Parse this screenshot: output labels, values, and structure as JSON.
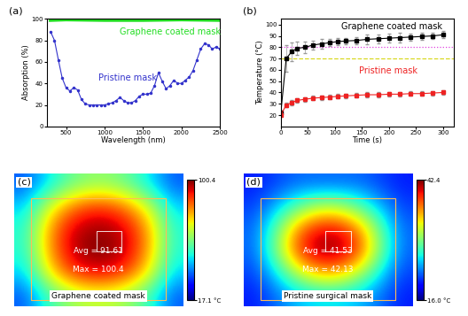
{
  "chart_data": [
    {
      "type": "line",
      "panel": "(a)",
      "x_label": "Wavelength (nm)",
      "y_label": "Absorption (%)",
      "xlim": [
        250,
        2500
      ],
      "xticks": [
        500,
        1000,
        1500,
        2000,
        2500
      ],
      "ylim": [
        0,
        100
      ],
      "yticks": [
        0,
        20,
        40,
        60,
        80,
        100
      ],
      "series": [
        {
          "name": "Graphene coated mask",
          "color": "#22dd22",
          "marker": "none",
          "line_style": "solid",
          "x": [
            300,
            500,
            1000,
            1500,
            2000,
            2500
          ],
          "values": [
            99,
            99.5,
            99,
            99,
            99.5,
            99
          ]
        },
        {
          "name": "Pristine mask",
          "color": "#3333cc",
          "marker": "o",
          "line_style": "solid",
          "x": [
            300,
            350,
            400,
            450,
            500,
            550,
            600,
            650,
            700,
            750,
            800,
            850,
            900,
            950,
            1000,
            1050,
            1100,
            1150,
            1200,
            1250,
            1300,
            1350,
            1400,
            1450,
            1500,
            1550,
            1600,
            1650,
            1700,
            1750,
            1800,
            1850,
            1900,
            1950,
            2000,
            2050,
            2100,
            2150,
            2200,
            2250,
            2300,
            2350,
            2400,
            2450,
            2500
          ],
          "values": [
            88,
            80,
            62,
            45,
            36,
            33,
            36,
            34,
            25,
            21,
            20,
            20,
            20,
            20,
            20,
            21,
            22,
            24,
            27,
            24,
            22,
            22,
            24,
            28,
            30,
            30,
            31,
            38,
            50,
            42,
            35,
            38,
            43,
            40,
            40,
            43,
            46,
            52,
            62,
            72,
            77,
            76,
            72,
            74,
            72
          ]
        }
      ]
    },
    {
      "type": "line",
      "panel": "(b)",
      "x_label": "Time (s)",
      "y_label": "Temperature (°C)",
      "xlim": [
        0,
        320
      ],
      "xticks": [
        0,
        50,
        100,
        150,
        200,
        250,
        300
      ],
      "ylim": [
        10,
        105
      ],
      "yticks": [
        20,
        30,
        40,
        50,
        60,
        70,
        80,
        90,
        100
      ],
      "hlines": [
        {
          "value": 80,
          "color": "#e040e0",
          "line_style": "dotted"
        },
        {
          "value": 70,
          "color": "#d8d820",
          "line_style": "dashed"
        }
      ],
      "series": [
        {
          "name": "Graphene coated mask",
          "color": "#000000",
          "marker": "s",
          "line_style": "solid",
          "x": [
            0,
            10,
            20,
            30,
            45,
            60,
            75,
            90,
            105,
            120,
            140,
            160,
            180,
            200,
            220,
            240,
            260,
            280,
            300
          ],
          "values": [
            22,
            70,
            76,
            79,
            80,
            82,
            83,
            84,
            85,
            85.5,
            86,
            87,
            87.5,
            88,
            88.5,
            89,
            89.5,
            90,
            91
          ],
          "errors": [
            2,
            12,
            8,
            6,
            5,
            4,
            4,
            3,
            3,
            3,
            3,
            4,
            4,
            4,
            4,
            3,
            3,
            3,
            3
          ]
        },
        {
          "name": "Pristine mask",
          "color": "#ee2222",
          "marker": "s",
          "line_style": "solid",
          "x": [
            0,
            10,
            20,
            30,
            45,
            60,
            75,
            90,
            105,
            120,
            140,
            160,
            180,
            200,
            220,
            240,
            260,
            280,
            300
          ],
          "values": [
            20,
            29,
            31,
            33,
            34,
            35,
            35.5,
            36,
            36.5,
            37,
            37.5,
            38,
            38,
            38.5,
            38.5,
            39,
            39,
            39.5,
            40
          ],
          "errors": [
            1,
            2,
            2,
            2,
            2,
            2,
            2,
            2,
            2,
            2,
            2,
            2,
            2,
            2,
            2,
            2,
            2,
            2,
            2
          ]
        }
      ]
    },
    {
      "type": "heatmap",
      "panel": "(c)",
      "caption": "Graphene coated mask",
      "annotations": [
        "Avg = 91.61",
        "Max = 100.4"
      ],
      "colorbar_range": [
        17.1,
        100.4
      ],
      "colorbar_ticks": [
        100.4,
        {
          "value": 17.1,
          "label": "17.1 °C"
        }
      ],
      "cells": [
        [
          35,
          45,
          55,
          60,
          60,
          55,
          45,
          35
        ],
        [
          45,
          65,
          80,
          88,
          88,
          80,
          65,
          45
        ],
        [
          50,
          75,
          92,
          98,
          98,
          92,
          75,
          50
        ],
        [
          50,
          75,
          93,
          100,
          100,
          93,
          75,
          50
        ],
        [
          45,
          68,
          85,
          92,
          92,
          85,
          68,
          45
        ],
        [
          35,
          50,
          60,
          65,
          65,
          60,
          50,
          35
        ]
      ]
    },
    {
      "type": "heatmap",
      "panel": "(d)",
      "caption": "Pristine surgical mask",
      "annotations": [
        "Avg = 41.53",
        "Max = 42.13"
      ],
      "colorbar_range": [
        16.0,
        42.4
      ],
      "colorbar_ticks": [
        42.4,
        {
          "value": 16.0,
          "label": "16.0 °C"
        }
      ],
      "cells": [
        [
          20,
          21,
          22,
          22,
          22,
          22,
          21,
          20
        ],
        [
          21,
          24,
          28,
          31,
          31,
          28,
          24,
          21
        ],
        [
          22,
          28,
          36,
          40,
          40,
          36,
          28,
          22
        ],
        [
          22,
          29,
          38,
          42,
          42,
          38,
          29,
          22
        ],
        [
          21,
          25,
          31,
          35,
          35,
          31,
          25,
          21
        ],
        [
          20,
          22,
          24,
          25,
          25,
          24,
          22,
          20
        ]
      ]
    }
  ]
}
